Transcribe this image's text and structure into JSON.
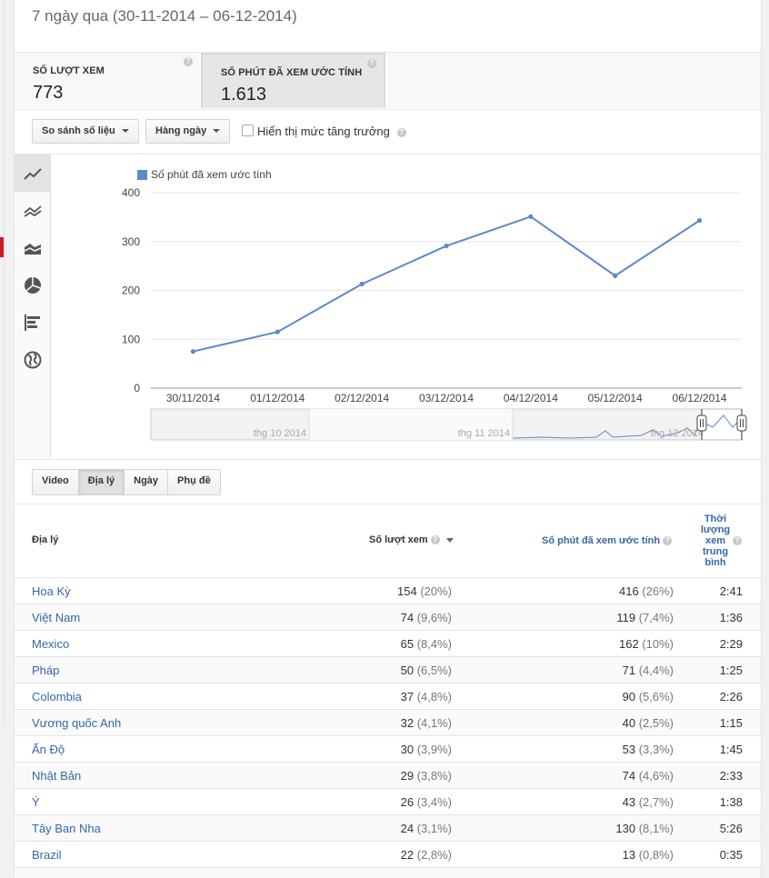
{
  "header": {
    "date_range": "7 ngày qua (30-11-2014 – 06-12-2014)"
  },
  "metrics": [
    {
      "label": "SỐ LƯỢT XEM",
      "value": "773"
    },
    {
      "label": "SỐ PHÚT ĐÃ XEM ƯỚC TÍNH",
      "value": "1.613"
    }
  ],
  "controls": {
    "compare_label": "So sánh số liệu",
    "interval_label": "Hàng ngày",
    "growth_label": "Hiển thị mức tăng trưởng"
  },
  "sidebar_icons": [
    "line-chart-icon",
    "multiline-chart-icon",
    "area-chart-icon",
    "pie-chart-icon",
    "bar-chart-icon",
    "globe-icon"
  ],
  "chart_data": {
    "type": "line",
    "legend": "Số phút đã xem ước tính",
    "series_color": "#5b8ac8",
    "categories": [
      "30/11/2014",
      "01/12/2014",
      "02/12/2014",
      "03/12/2014",
      "04/12/2014",
      "05/12/2014",
      "06/12/2014"
    ],
    "values": [
      75,
      115,
      213,
      291,
      351,
      230,
      343
    ],
    "yticks": [
      0,
      100,
      200,
      300,
      400
    ],
    "ylim": [
      0,
      400
    ],
    "grid": true,
    "timeline_labels": [
      "thg 10 2014",
      "thg 11 2014",
      "thg 12 2014"
    ]
  },
  "tabs": [
    {
      "label": "Video",
      "active": false
    },
    {
      "label": "Địa lý",
      "active": true
    },
    {
      "label": "Ngày",
      "active": false
    },
    {
      "label": "Phụ đề",
      "active": false
    }
  ],
  "table": {
    "headers": {
      "geo": "Địa lý",
      "views": "Số lượt xem",
      "minutes": "Số phút đã xem ước tính",
      "avg": "Thời lượng xem trung bình"
    },
    "rows": [
      {
        "geo": "Hoa Kỳ",
        "views": "154",
        "views_pct": "(20%)",
        "minutes": "416",
        "minutes_pct": "(26%)",
        "avg": "2:41"
      },
      {
        "geo": "Việt Nam",
        "views": "74",
        "views_pct": "(9,6%)",
        "minutes": "119",
        "minutes_pct": "(7,4%)",
        "avg": "1:36"
      },
      {
        "geo": "Mexico",
        "views": "65",
        "views_pct": "(8,4%)",
        "minutes": "162",
        "minutes_pct": "(10%)",
        "avg": "2:29"
      },
      {
        "geo": "Pháp",
        "views": "50",
        "views_pct": "(6,5%)",
        "minutes": "71",
        "minutes_pct": "(4,4%)",
        "avg": "1:25"
      },
      {
        "geo": "Colombia",
        "views": "37",
        "views_pct": "(4,8%)",
        "minutes": "90",
        "minutes_pct": "(5,6%)",
        "avg": "2:26"
      },
      {
        "geo": "Vương quốc Anh",
        "views": "32",
        "views_pct": "(4,1%)",
        "minutes": "40",
        "minutes_pct": "(2,5%)",
        "avg": "1:15"
      },
      {
        "geo": "Ấn Độ",
        "views": "30",
        "views_pct": "(3,9%)",
        "minutes": "53",
        "minutes_pct": "(3,3%)",
        "avg": "1:45"
      },
      {
        "geo": "Nhật Bản",
        "views": "29",
        "views_pct": "(3,8%)",
        "minutes": "74",
        "minutes_pct": "(4,6%)",
        "avg": "2:33"
      },
      {
        "geo": "Ý",
        "views": "26",
        "views_pct": "(3,4%)",
        "minutes": "43",
        "minutes_pct": "(2,7%)",
        "avg": "1:38"
      },
      {
        "geo": "Tây Ban Nha",
        "views": "24",
        "views_pct": "(3,1%)",
        "minutes": "130",
        "minutes_pct": "(8,1%)",
        "avg": "5:26"
      },
      {
        "geo": "Brazil",
        "views": "22",
        "views_pct": "(2,8%)",
        "minutes": "13",
        "minutes_pct": "(0,8%)",
        "avg": "0:35"
      }
    ]
  }
}
